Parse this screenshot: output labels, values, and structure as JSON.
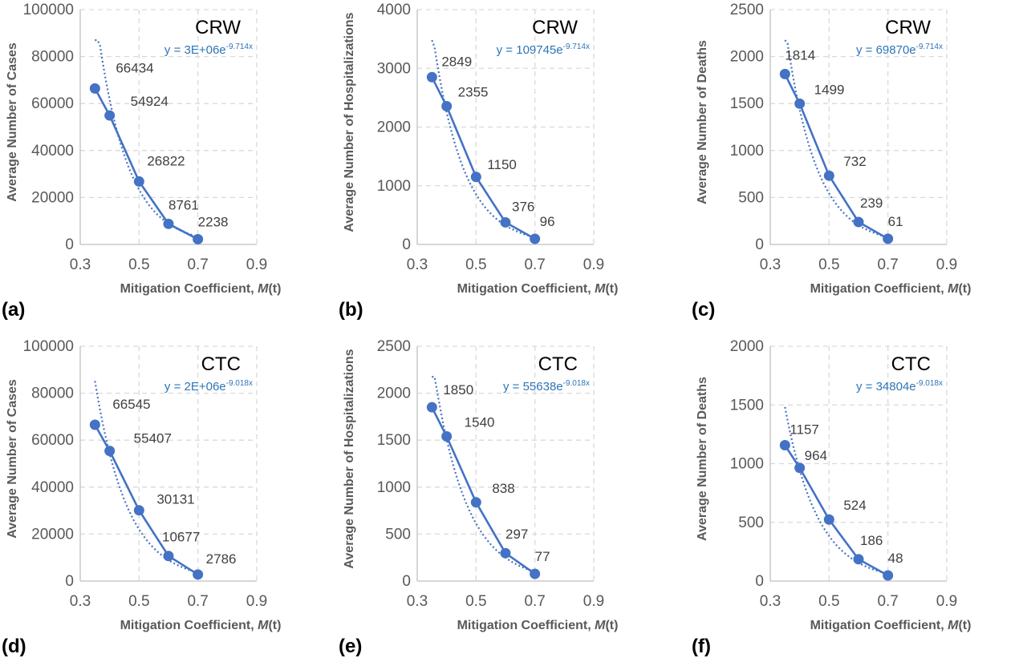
{
  "colors": {
    "series": "#4472C4",
    "equation": "#2E75B6",
    "grid": "#D9D9D9",
    "axis": "#BFBFBF",
    "text": "#595959"
  },
  "chart_data": [
    {
      "letter": "(a)",
      "tag": "CRW",
      "type": "scatter",
      "xlabel": "Mitigation Coefficient, ",
      "xlabel_italic": "M",
      "xlabel_tail": "(t)",
      "ylabel": "Average Number of Cases",
      "xlim": [
        0.3,
        0.9
      ],
      "xticks": [
        "0.3",
        "0.5",
        "0.7",
        "0.9"
      ],
      "ylim": [
        0,
        100000
      ],
      "yticks": [
        "0",
        "20000",
        "40000",
        "60000",
        "80000",
        "100000"
      ],
      "x": [
        0.35,
        0.4,
        0.5,
        0.6,
        0.7
      ],
      "y": [
        66434,
        54924,
        26822,
        8761,
        2238
      ],
      "labels": [
        "66434",
        "54924",
        "26822",
        "8761",
        "2238"
      ],
      "trendline": {
        "a": 3000000,
        "b": -9.714,
        "x_start": 0.35,
        "x_end": 0.7
      },
      "equation_main": "y = 3E+06e",
      "equation_exp": "-9.714x"
    },
    {
      "letter": "(b)",
      "tag": "CRW",
      "type": "scatter",
      "xlabel": "Mitigation Coefficient, ",
      "xlabel_italic": "M",
      "xlabel_tail": "(t)",
      "ylabel": "Average Number of Hospitalizations",
      "xlim": [
        0.3,
        0.9
      ],
      "xticks": [
        "0.3",
        "0.5",
        "0.7",
        "0.9"
      ],
      "ylim": [
        0,
        4000
      ],
      "yticks": [
        "0",
        "1000",
        "2000",
        "3000",
        "4000"
      ],
      "x": [
        0.35,
        0.4,
        0.5,
        0.6,
        0.7
      ],
      "y": [
        2849,
        2355,
        1150,
        376,
        96
      ],
      "labels": [
        "2849",
        "2355",
        "1150",
        "376",
        "96"
      ],
      "trendline": {
        "a": 109745,
        "b": -9.714,
        "x_start": 0.35,
        "x_end": 0.7
      },
      "equation_main": "y = 109745e",
      "equation_exp": "-9.714x"
    },
    {
      "letter": "(c)",
      "tag": "CRW",
      "type": "scatter",
      "xlabel": "Mitigation Coefficient, ",
      "xlabel_italic": "M",
      "xlabel_tail": "(t)",
      "ylabel": "Average Number of Deaths",
      "xlim": [
        0.3,
        0.9
      ],
      "xticks": [
        "0.3",
        "0.5",
        "0.7",
        "0.9"
      ],
      "ylim": [
        0,
        2500
      ],
      "yticks": [
        "0",
        "500",
        "1000",
        "1500",
        "2000",
        "2500"
      ],
      "x": [
        0.35,
        0.4,
        0.5,
        0.6,
        0.7
      ],
      "y": [
        1814,
        1499,
        732,
        239,
        61
      ],
      "labels": [
        "1814",
        "1499",
        "732",
        "239",
        "61"
      ],
      "trendline": {
        "a": 69870,
        "b": -9.714,
        "x_start": 0.35,
        "x_end": 0.7
      },
      "equation_main": "y = 69870e",
      "equation_exp": "-9.714x"
    },
    {
      "letter": "(d)",
      "tag": "CTC",
      "type": "scatter",
      "xlabel": "Mitigation Coefficient, ",
      "xlabel_italic": "M",
      "xlabel_tail": "(t)",
      "ylabel": "Average Number of Cases",
      "xlim": [
        0.3,
        0.9
      ],
      "xticks": [
        "0.3",
        "0.5",
        "0.7",
        "0.9"
      ],
      "ylim": [
        0,
        100000
      ],
      "yticks": [
        "0",
        "20000",
        "40000",
        "60000",
        "80000",
        "100000"
      ],
      "x": [
        0.35,
        0.4,
        0.5,
        0.6,
        0.7
      ],
      "y": [
        66545,
        55407,
        30131,
        10677,
        2786
      ],
      "labels": [
        "66545",
        "55407",
        "30131",
        "10677",
        "2786"
      ],
      "trendline": {
        "a": 2000000,
        "b": -9.018,
        "x_start": 0.35,
        "x_end": 0.7
      },
      "equation_main": "y = 2E+06e",
      "equation_exp": "-9.018x"
    },
    {
      "letter": "(e)",
      "tag": "CTC",
      "type": "scatter",
      "xlabel": "Mitigation Coefficient, ",
      "xlabel_italic": "M",
      "xlabel_tail": "(t)",
      "ylabel": "Average Number of Hospitalizations",
      "xlim": [
        0.3,
        0.9
      ],
      "xticks": [
        "0.3",
        "0.5",
        "0.7",
        "0.9"
      ],
      "ylim": [
        0,
        2500
      ],
      "yticks": [
        "0",
        "500",
        "1000",
        "1500",
        "2000",
        "2500"
      ],
      "x": [
        0.35,
        0.4,
        0.5,
        0.6,
        0.7
      ],
      "y": [
        1850,
        1540,
        838,
        297,
        77
      ],
      "labels": [
        "1850",
        "1540",
        "838",
        "297",
        "77"
      ],
      "trendline": {
        "a": 55638,
        "b": -9.018,
        "x_start": 0.35,
        "x_end": 0.7
      },
      "equation_main": "y = 55638e",
      "equation_exp": "-9.018x"
    },
    {
      "letter": "(f)",
      "tag": "CTC",
      "type": "scatter",
      "xlabel": "Mitigation Coefficient, ",
      "xlabel_italic": "M",
      "xlabel_tail": "(t)",
      "ylabel": "Average Number of Deaths",
      "xlim": [
        0.3,
        0.9
      ],
      "xticks": [
        "0.3",
        "0.5",
        "0.7",
        "0.9"
      ],
      "ylim": [
        0,
        2000
      ],
      "yticks": [
        "0",
        "500",
        "1000",
        "1500",
        "2000"
      ],
      "x": [
        0.35,
        0.4,
        0.5,
        0.6,
        0.7
      ],
      "y": [
        1157,
        964,
        524,
        186,
        48
      ],
      "labels": [
        "1157",
        "964",
        "524",
        "186",
        "48"
      ],
      "trendline": {
        "a": 34804,
        "b": -9.018,
        "x_start": 0.35,
        "x_end": 0.7
      },
      "equation_main": "y = 34804e",
      "equation_exp": "-9.018x"
    }
  ]
}
